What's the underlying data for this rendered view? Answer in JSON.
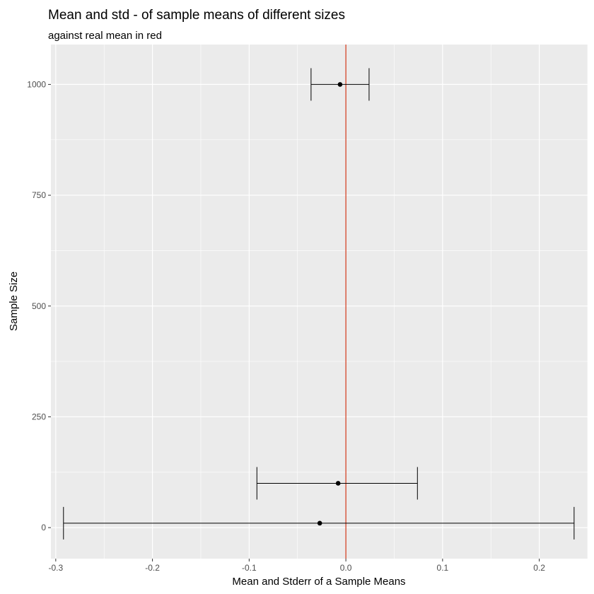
{
  "chart_data": {
    "type": "scatter",
    "title": "Mean and std - of sample means of different sizes",
    "subtitle": "against real mean in red",
    "xlabel": "Mean and Stderr of a Sample Means",
    "ylabel": "Sample Size",
    "xlim": [
      -0.305,
      0.25
    ],
    "ylim": [
      -70,
      1090
    ],
    "x_ticks": [
      -0.3,
      -0.2,
      -0.1,
      0.0,
      0.1,
      0.2
    ],
    "x_tick_labels": [
      "-0.3",
      "-0.2",
      "-0.1",
      "0.0",
      "0.1",
      "0.2"
    ],
    "y_ticks": [
      0,
      250,
      500,
      750,
      1000
    ],
    "y_tick_labels": [
      "0",
      "250",
      "500",
      "750",
      "1000"
    ],
    "grid": true,
    "reference_line": {
      "x": 0.0,
      "color": "#cc2200"
    },
    "points": [
      {
        "y": 10,
        "mean": -0.027,
        "lower": -0.292,
        "upper": 0.236
      },
      {
        "y": 100,
        "mean": -0.008,
        "lower": -0.092,
        "upper": 0.074
      },
      {
        "y": 1000,
        "mean": -0.006,
        "lower": -0.036,
        "upper": 0.024
      }
    ],
    "colors": {
      "panel": "#ebebeb",
      "grid": "#ffffff",
      "point": "#000000"
    }
  }
}
